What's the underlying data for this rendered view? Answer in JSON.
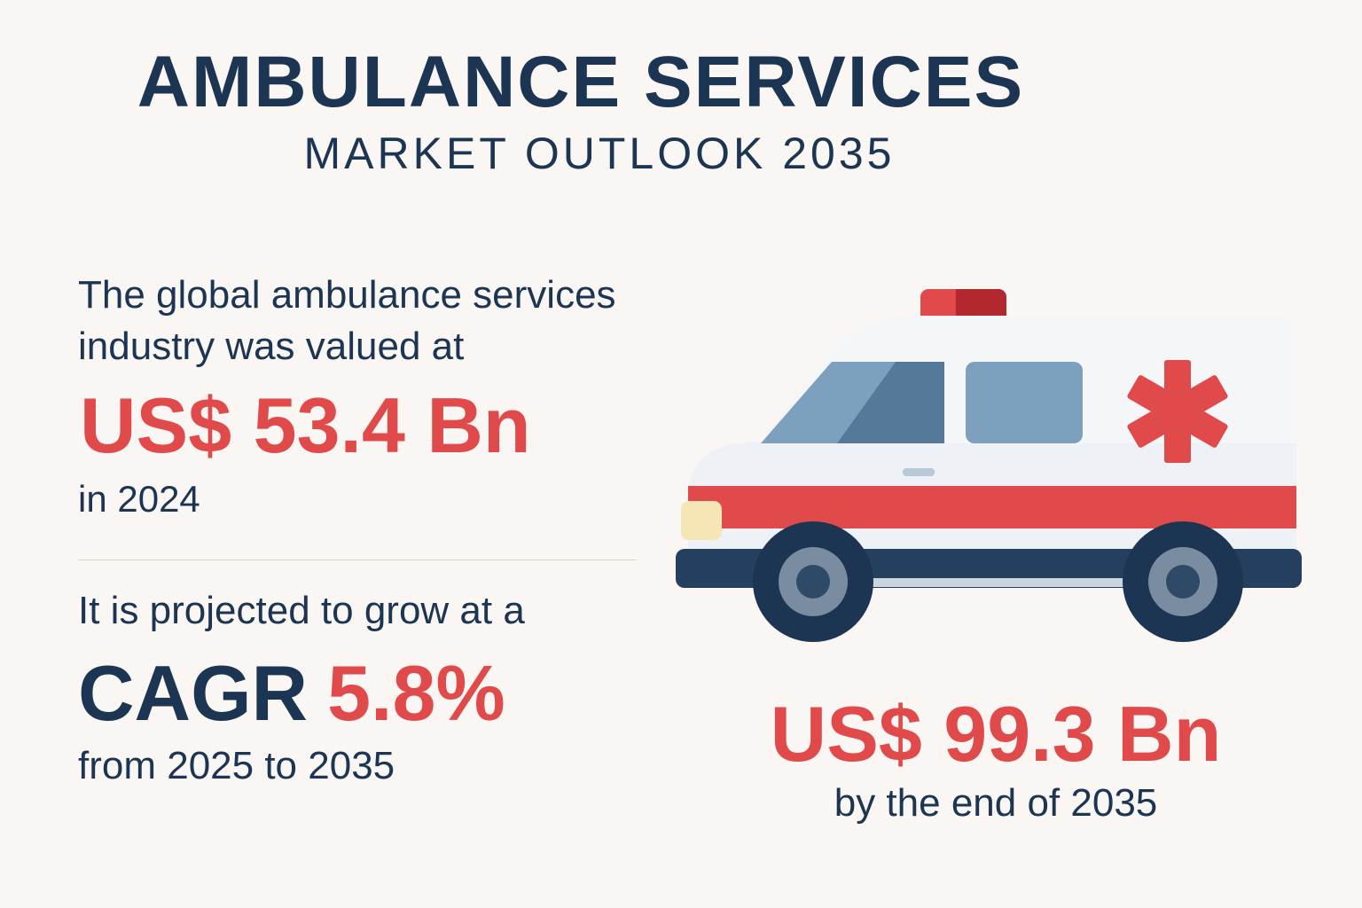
{
  "header": {
    "title": "AMBULANCE SERVICES",
    "subtitle": "MARKET OUTLOOK 2035"
  },
  "left_panel": {
    "intro_line1": "The global ambulance services",
    "intro_line2": "industry was valued at",
    "value_2024": "US$ 53.4 Bn",
    "year_text": "in 2024",
    "projection_text": "It is projected to grow at a",
    "cagr_label": "CAGR",
    "cagr_value": "5.8%",
    "period_text": "from 2025 to 2035"
  },
  "right_panel": {
    "illustration": "ambulance-icon",
    "value_2035": "US$ 99.3 Bn",
    "end_text": "by the end of 2035"
  },
  "colors": {
    "navy": "#1b3553",
    "red": "#e04a4a",
    "background": "#f9f6f3"
  }
}
